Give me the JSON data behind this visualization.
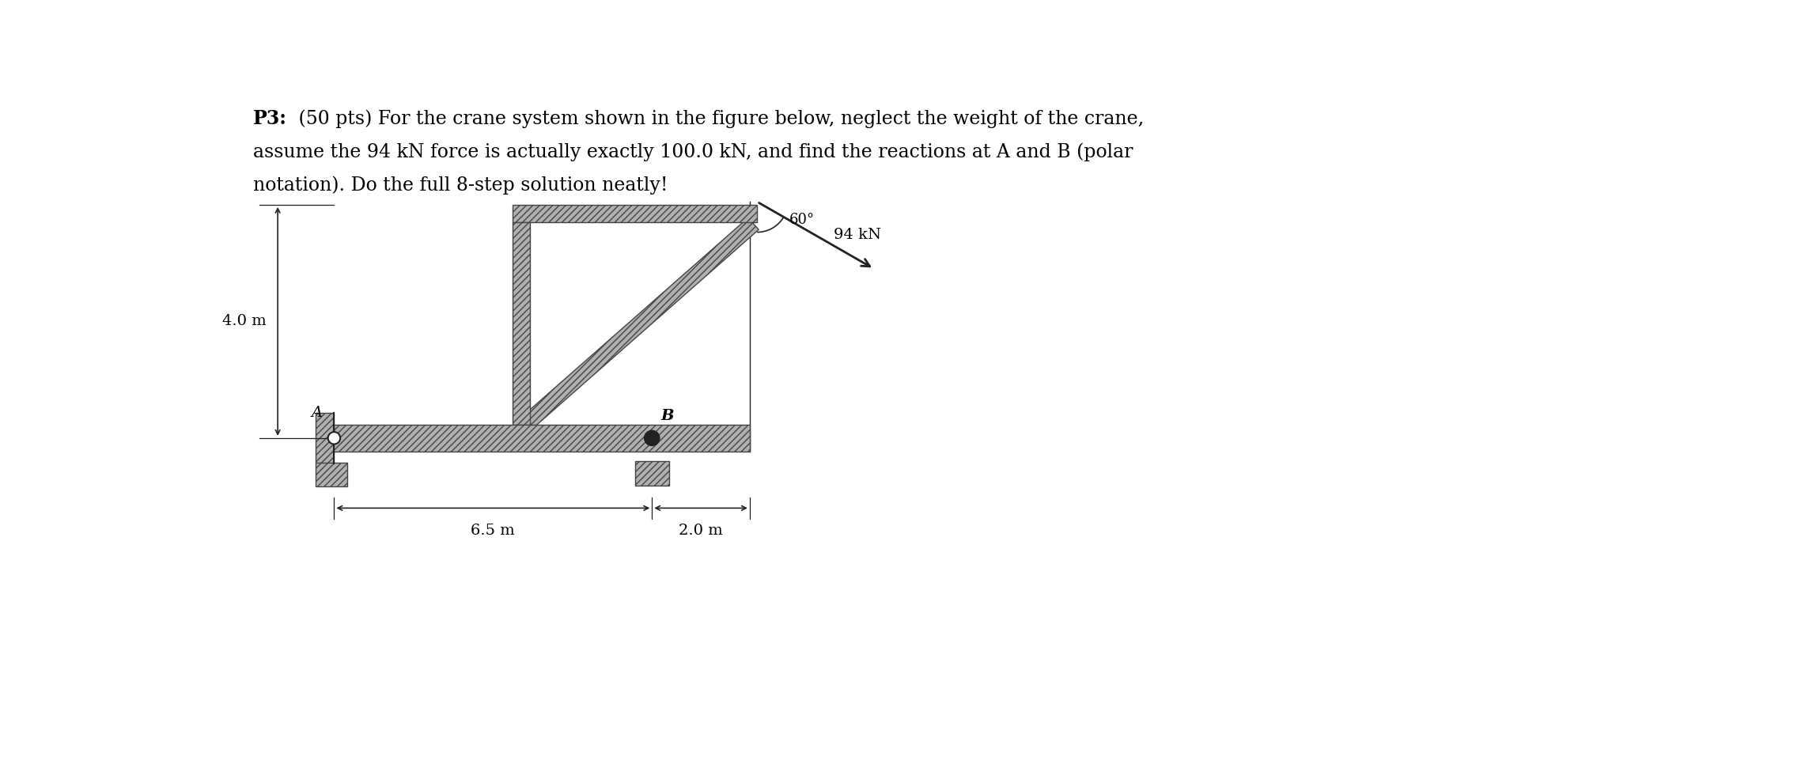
{
  "bg_color": "#ffffff",
  "text_color": "#000000",
  "title_bold": "P3:",
  "title_rest1": " (50 pts) For the crane system shown in the figure below, neglect the weight of the crane,",
  "title_line2": "assume the 94 kN force is actually exactly 100.0 kN, and find the reactions at A and B (polar",
  "title_line3": "notation). Do the full 8-step solution neatly!",
  "label_A": "A",
  "label_B": "B",
  "dim_height": "4.0 m",
  "dim_horiz1": "6.5 m",
  "dim_horiz2": "2.0 m",
  "force_label": "94 kN",
  "angle_label": "60°",
  "title_fontsize": 17,
  "label_fontsize": 14,
  "dim_fontsize": 14,
  "hatch_pattern": "////",
  "struct_color": "#b0b0b0",
  "struct_edge": "#444444",
  "line_color": "#222222"
}
